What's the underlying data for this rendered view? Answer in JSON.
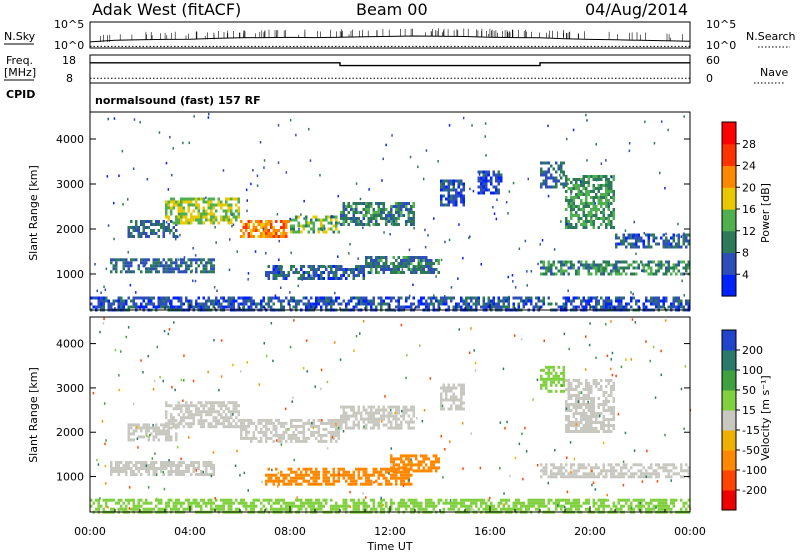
{
  "header": {
    "radar": "Adak West (fitACF)",
    "beam": "Beam 00",
    "date": "04/Aug/2014"
  },
  "params": {
    "nsky_label": "N.Sky",
    "nsearch_label": "N.Search",
    "freq_label": "Freq.",
    "freq_unit": "[MHz]",
    "nave_label": "Nave",
    "cpid_label": "CPID",
    "cpid_text": "normalsound (fast) 157 RF",
    "noise_ticks_left": [
      "10^5",
      "10^0"
    ],
    "noise_ticks_right": [
      "10^5",
      "10^0"
    ],
    "freq_ticks": [
      "18",
      "8"
    ],
    "nave_ticks": [
      "60",
      "0"
    ]
  },
  "chart_data": [
    {
      "type": "line",
      "name": "noise",
      "y_scale": "log",
      "ylim": [
        1,
        100000
      ],
      "x_hours": [
        0,
        1,
        2,
        3,
        4,
        5,
        6,
        7,
        8,
        9,
        10,
        11,
        12,
        13,
        14,
        15,
        16,
        17,
        18,
        19,
        20,
        21,
        22,
        23,
        24
      ],
      "series": [
        {
          "name": "N.Sky",
          "values": [
            15,
            30,
            40,
            45,
            50,
            70,
            90,
            100,
            110,
            100,
            120,
            150,
            170,
            200,
            180,
            160,
            120,
            100,
            90,
            60,
            45,
            40,
            30,
            25,
            20
          ]
        },
        {
          "name": "N.Search",
          "values": [
            2,
            2,
            2,
            2,
            2,
            2,
            2,
            2,
            2,
            2,
            2,
            2,
            2,
            2,
            2,
            2,
            2,
            2,
            2,
            2,
            2,
            2,
            2,
            2,
            2
          ]
        }
      ]
    },
    {
      "type": "line",
      "name": "frequency",
      "ylim": [
        8,
        18
      ],
      "x_hours": [
        0,
        10,
        10,
        18,
        18,
        24
      ],
      "series": [
        {
          "name": "Freq.",
          "values": [
            15.2,
            15.2,
            14.2,
            14.2,
            15.2,
            15.2
          ]
        },
        {
          "name": "Nave",
          "values": [
            10,
            10,
            10,
            10,
            10,
            10
          ]
        }
      ]
    },
    {
      "type": "heatmap",
      "name": "power",
      "ylabel": "Slant Range [km]",
      "ylim": [
        200,
        4600
      ],
      "yticks": [
        1000,
        2000,
        3000,
        4000
      ],
      "colorbar": {
        "label": "Power [dB]",
        "ticks": [
          "28",
          "24",
          "20",
          "16",
          "12",
          "8",
          "4"
        ],
        "colors": [
          "#0022ff",
          "#2f4fb8",
          "#2d7a5a",
          "#50b050",
          "#e8c800",
          "#ff8800",
          "#ff3300",
          "#ff0000"
        ]
      },
      "echo_regions": [
        {
          "t0": 0.8,
          "t1": 5.0,
          "r0": 1050,
          "r1": 1350,
          "value": 8
        },
        {
          "t0": 1.5,
          "t1": 3.5,
          "r0": 1850,
          "r1": 2200,
          "value": 8
        },
        {
          "t0": 3.0,
          "t1": 6.0,
          "r0": 2100,
          "r1": 2700,
          "value": 16
        },
        {
          "t0": 6.0,
          "t1": 8.0,
          "r0": 1800,
          "r1": 2200,
          "value": 22
        },
        {
          "t0": 8.0,
          "t1": 10.0,
          "r0": 1900,
          "r1": 2300,
          "value": 14
        },
        {
          "t0": 10.0,
          "t1": 13.0,
          "r0": 2100,
          "r1": 2600,
          "value": 10
        },
        {
          "t0": 7.0,
          "t1": 11.0,
          "r0": 900,
          "r1": 1200,
          "value": 7
        },
        {
          "t0": 11.0,
          "t1": 14.0,
          "r0": 1000,
          "r1": 1400,
          "value": 9
        },
        {
          "t0": 14.0,
          "t1": 15.0,
          "r0": 2500,
          "r1": 3100,
          "value": 6
        },
        {
          "t0": 15.5,
          "t1": 16.5,
          "r0": 2800,
          "r1": 3300,
          "value": 5
        },
        {
          "t0": 18.0,
          "t1": 19.0,
          "r0": 2900,
          "r1": 3500,
          "value": 8
        },
        {
          "t0": 19.0,
          "t1": 21.0,
          "r0": 2000,
          "r1": 3200,
          "value": 12
        },
        {
          "t0": 21.0,
          "t1": 24.0,
          "r0": 1600,
          "r1": 1900,
          "value": 7
        },
        {
          "t0": 18.0,
          "t1": 24.0,
          "r0": 1000,
          "r1": 1300,
          "value": 11
        },
        {
          "t0": 0.0,
          "t1": 24.0,
          "r0": 200,
          "r1": 500,
          "value": 6
        }
      ]
    },
    {
      "type": "heatmap",
      "name": "velocity",
      "ylabel": "Slant Range [km]",
      "ylim": [
        200,
        4600
      ],
      "yticks": [
        1000,
        2000,
        3000,
        4000
      ],
      "xlabel": "Time UT",
      "xticks": [
        "00:00",
        "04:00",
        "08:00",
        "12:00",
        "16:00",
        "20:00",
        "00:00"
      ],
      "colorbar": {
        "label": "Velocity [m s⁻¹]",
        "ticks": [
          "200",
          "100",
          "50",
          "15",
          "-15",
          "-50",
          "-100",
          "-200"
        ],
        "colors": [
          "#2244cc",
          "#2a7a6a",
          "#3fa03f",
          "#80d040",
          "#c8c8c0",
          "#f0b000",
          "#ff8800",
          "#ff4400",
          "#ee0000"
        ]
      },
      "echo_regions": [
        {
          "t0": 0.8,
          "t1": 5.0,
          "r0": 1050,
          "r1": 1350,
          "value": 0
        },
        {
          "t0": 1.5,
          "t1": 3.5,
          "r0": 1850,
          "r1": 2200,
          "value": 0
        },
        {
          "t0": 3.0,
          "t1": 6.0,
          "r0": 2100,
          "r1": 2700,
          "value": 0
        },
        {
          "t0": 6.0,
          "t1": 10.0,
          "r0": 1800,
          "r1": 2300,
          "value": -10
        },
        {
          "t0": 10.0,
          "t1": 13.0,
          "r0": 2100,
          "r1": 2600,
          "value": 0
        },
        {
          "t0": 7.0,
          "t1": 13.0,
          "r0": 800,
          "r1": 1200,
          "value": -80
        },
        {
          "t0": 12.0,
          "t1": 14.0,
          "r0": 1100,
          "r1": 1500,
          "value": -70
        },
        {
          "t0": 14.0,
          "t1": 15.0,
          "r0": 2500,
          "r1": 3100,
          "value": 0
        },
        {
          "t0": 18.0,
          "t1": 19.0,
          "r0": 2900,
          "r1": 3500,
          "value": 20
        },
        {
          "t0": 19.0,
          "t1": 21.0,
          "r0": 2000,
          "r1": 3200,
          "value": 10
        },
        {
          "t0": 18.0,
          "t1": 24.0,
          "r0": 1000,
          "r1": 1300,
          "value": 0
        },
        {
          "t0": 0.0,
          "t1": 24.0,
          "r0": 200,
          "r1": 500,
          "value": 30
        }
      ]
    }
  ]
}
